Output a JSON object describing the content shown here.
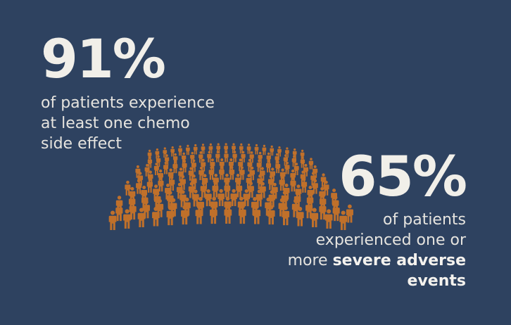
{
  "stat_left": {
    "value": "91%",
    "lines": [
      "of patients experience",
      "at least one chemo",
      "side effect"
    ]
  },
  "stat_right": {
    "value": "65%",
    "line1": "of patients",
    "line2": "experienced one or",
    "line3_plain": "more ",
    "line3_bold": "severe adverse",
    "line4_bold": "events"
  },
  "colors": {
    "background": "#2e4260",
    "figure": "#c0702a",
    "text": "#ece9e4"
  },
  "icons": {
    "crowd": "person-icon"
  }
}
